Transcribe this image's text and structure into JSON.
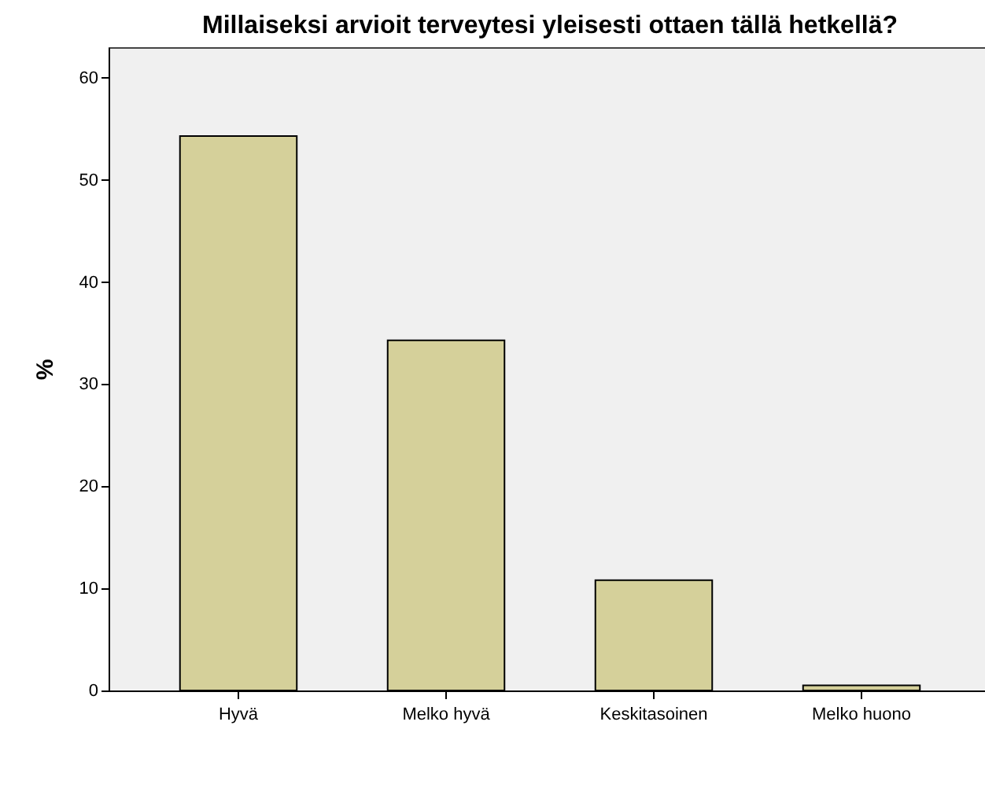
{
  "chart_data": {
    "type": "bar",
    "title": "Millaiseksi arvioit terveytesi yleisesti ottaen tällä hetkellä?",
    "ylabel": "%",
    "categories": [
      "Hyvä",
      "Melko hyvä",
      "Keskitasoinen",
      "Melko huono"
    ],
    "values": [
      54.3,
      34.3,
      10.8,
      0.5
    ],
    "color": "#d5d09a",
    "ylim": [
      0,
      63
    ],
    "yticks": [
      0,
      10,
      20,
      30,
      40,
      50,
      60
    ],
    "grid": false
  }
}
